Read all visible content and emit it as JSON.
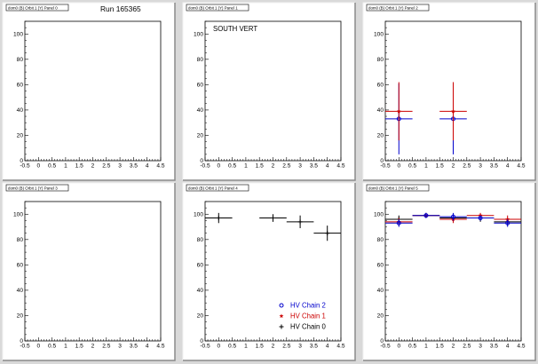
{
  "run_label": "Run 165365",
  "colors": {
    "chain2": "#0000cc",
    "chain1": "#cc0000",
    "chain0": "#000000"
  },
  "chart_data": [
    {
      "type": "scatter",
      "title": "dom0 (B) Orbit 1 (Y) Panel 0",
      "annotation": "",
      "xlim": [
        -0.5,
        4.5
      ],
      "ylim": [
        0,
        110
      ],
      "xticks": [
        "-0.5",
        "0",
        "0.5",
        "1",
        "1.5",
        "2",
        "2.5",
        "3",
        "3.5",
        "4",
        "4.5"
      ],
      "yticks": [
        "0",
        "20",
        "40",
        "60",
        "80",
        "100"
      ],
      "series": []
    },
    {
      "type": "scatter",
      "title": "dom0 (B) Orbit 1 (Y) Panel 1",
      "annotation": "SOUTH VERT",
      "xlim": [
        -0.5,
        4.5
      ],
      "ylim": [
        0,
        110
      ],
      "xticks": [
        "-0.5",
        "0",
        "0.5",
        "1",
        "1.5",
        "2",
        "2.5",
        "3",
        "3.5",
        "4",
        "4.5"
      ],
      "yticks": [
        "0",
        "20",
        "40",
        "60",
        "80",
        "100"
      ],
      "series": []
    },
    {
      "type": "scatter",
      "title": "dom0 (B) Orbit 1 (Y) Panel 2",
      "annotation": "",
      "xlim": [
        -0.5,
        4.5
      ],
      "ylim": [
        0,
        110
      ],
      "xticks": [
        "-0.5",
        "0",
        "0.5",
        "1",
        "1.5",
        "2",
        "2.5",
        "3",
        "3.5",
        "4",
        "4.5"
      ],
      "yticks": [
        "0",
        "20",
        "40",
        "60",
        "80",
        "100"
      ],
      "series": [
        {
          "key": "chain2",
          "marker": "circle",
          "points": [
            {
              "x": 0,
              "y": 33,
              "xerr": 0.5,
              "yerr": 28
            },
            {
              "x": 2,
              "y": 33,
              "xerr": 0.5,
              "yerr": 28
            }
          ]
        },
        {
          "key": "chain1",
          "marker": "star",
          "points": [
            {
              "x": 0,
              "y": 39,
              "xerr": 0.5,
              "yerr": 23
            },
            {
              "x": 2,
              "y": 39,
              "xerr": 0.5,
              "yerr": 23
            }
          ]
        }
      ]
    },
    {
      "type": "scatter",
      "title": "dom0 (B) Orbit 1 (Y) Panel 3",
      "annotation": "",
      "xlim": [
        -0.5,
        4.5
      ],
      "ylim": [
        0,
        110
      ],
      "xticks": [
        "-0.5",
        "0",
        "0.5",
        "1",
        "1.5",
        "2",
        "2.5",
        "3",
        "3.5",
        "4",
        "4.5"
      ],
      "yticks": [
        "0",
        "20",
        "40",
        "60",
        "80",
        "100"
      ],
      "series": []
    },
    {
      "type": "scatter",
      "title": "dom0 (B) Orbit 1 (Y) Panel 4",
      "annotation": "",
      "xlim": [
        -0.5,
        4.5
      ],
      "ylim": [
        0,
        110
      ],
      "xticks": [
        "-0.5",
        "0",
        "0.5",
        "1",
        "1.5",
        "2",
        "2.5",
        "3",
        "3.5",
        "4",
        "4.5"
      ],
      "yticks": [
        "0",
        "20",
        "40",
        "60",
        "80",
        "100"
      ],
      "legend": {
        "position": "bottom-right",
        "entries": [
          {
            "key": "chain2",
            "marker": "circle",
            "label": "HV Chain 2"
          },
          {
            "key": "chain1",
            "marker": "star",
            "label": "HV Chain 1"
          },
          {
            "key": "chain0",
            "marker": "cross",
            "label": "HV Chain 0"
          }
        ]
      },
      "series": [
        {
          "key": "chain0",
          "marker": "cross",
          "points": [
            {
              "x": 0,
              "y": 97,
              "xerr": 0.5,
              "yerr": 4
            },
            {
              "x": 2,
              "y": 97,
              "xerr": 0.5,
              "yerr": 3
            },
            {
              "x": 3,
              "y": 94,
              "xerr": 0.5,
              "yerr": 5
            },
            {
              "x": 4,
              "y": 85,
              "xerr": 0.5,
              "yerr": 6
            }
          ]
        }
      ]
    },
    {
      "type": "scatter",
      "title": "dom0 (B) Orbit 1 (Y) Panel 5",
      "annotation": "",
      "xlim": [
        -0.5,
        4.5
      ],
      "ylim": [
        0,
        110
      ],
      "xticks": [
        "-0.5",
        "0",
        "0.5",
        "1",
        "1.5",
        "2",
        "2.5",
        "3",
        "3.5",
        "4",
        "4.5"
      ],
      "yticks": [
        "0",
        "20",
        "40",
        "60",
        "80",
        "100"
      ],
      "series": [
        {
          "key": "chain0",
          "marker": "cross",
          "points": [
            {
              "x": 0,
              "y": 96,
              "xerr": 0.5,
              "yerr": 3
            },
            {
              "x": 1,
              "y": 99,
              "xerr": 0.5,
              "yerr": 2
            },
            {
              "x": 2,
              "y": 97,
              "xerr": 0.5,
              "yerr": 3
            },
            {
              "x": 3,
              "y": 97,
              "xerr": 0.5,
              "yerr": 3
            },
            {
              "x": 4,
              "y": 94,
              "xerr": 0.5,
              "yerr": 3
            }
          ]
        },
        {
          "key": "chain1",
          "marker": "star",
          "points": [
            {
              "x": 0,
              "y": 94,
              "xerr": 0.5,
              "yerr": 3
            },
            {
              "x": 1,
              "y": 99,
              "xerr": 0.5,
              "yerr": 2
            },
            {
              "x": 2,
              "y": 96,
              "xerr": 0.5,
              "yerr": 3
            },
            {
              "x": 3,
              "y": 99,
              "xerr": 0.5,
              "yerr": 2
            },
            {
              "x": 4,
              "y": 96,
              "xerr": 0.5,
              "yerr": 3
            }
          ]
        },
        {
          "key": "chain2",
          "marker": "circle",
          "points": [
            {
              "x": 0,
              "y": 93,
              "xerr": 0.5,
              "yerr": 3
            },
            {
              "x": 1,
              "y": 99,
              "xerr": 0.5,
              "yerr": 2
            },
            {
              "x": 2,
              "y": 98,
              "xerr": 0.5,
              "yerr": 3
            },
            {
              "x": 3,
              "y": 97,
              "xerr": 0.5,
              "yerr": 2
            },
            {
              "x": 4,
              "y": 93,
              "xerr": 0.5,
              "yerr": 3
            }
          ]
        }
      ]
    }
  ]
}
